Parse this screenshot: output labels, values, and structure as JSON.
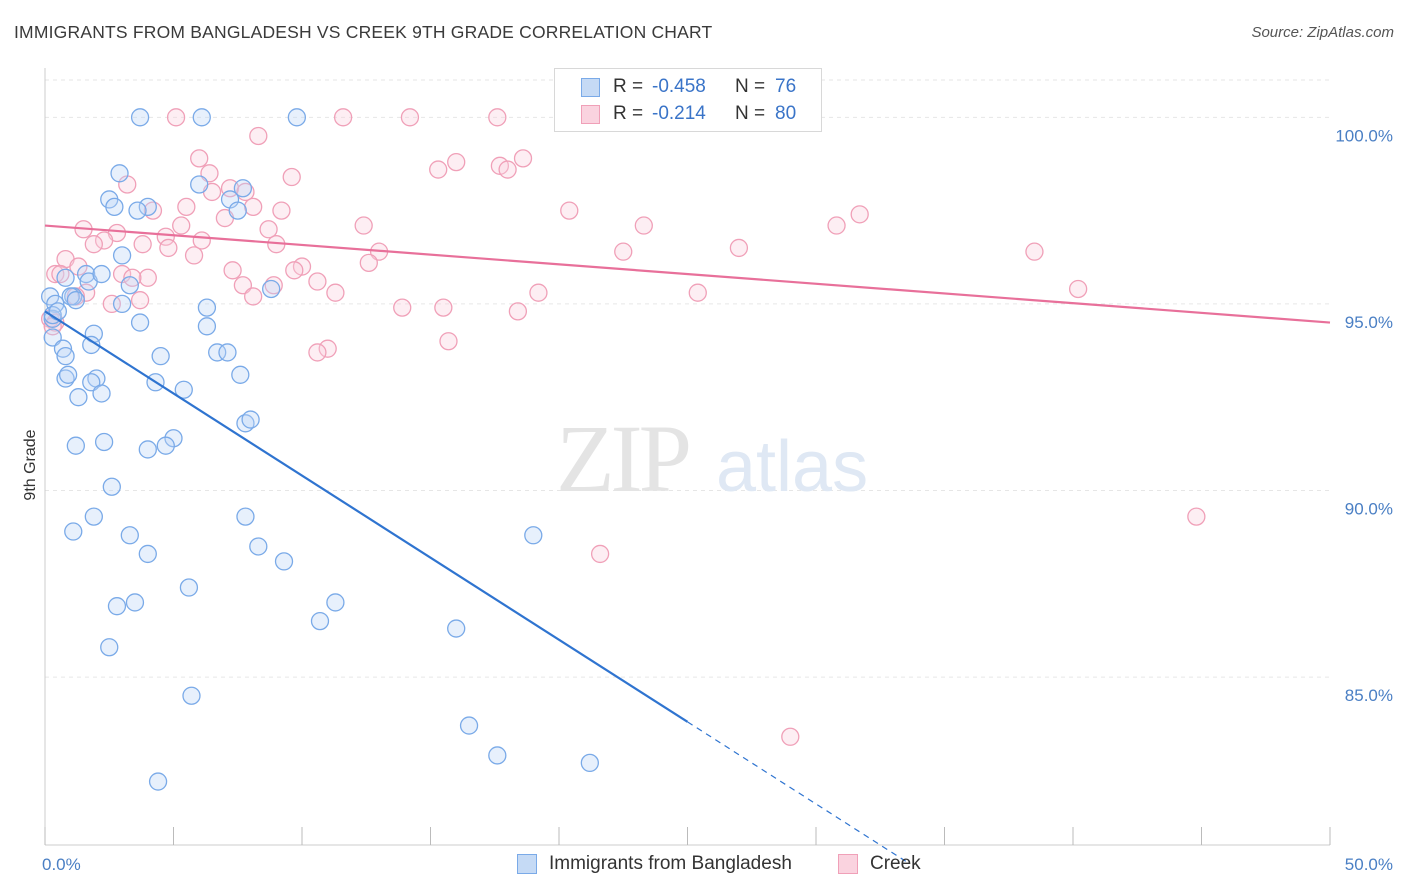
{
  "title": "IMMIGRANTS FROM BANGLADESH VS CREEK 9TH GRADE CORRELATION CHART",
  "source": "Source: ZipAtlas.com",
  "watermark": {
    "zip": "ZIP",
    "atlas": "atlas"
  },
  "legend": {
    "rows": [
      {
        "r_label": "R =",
        "r_value": "-0.458",
        "n_label": "N =",
        "n_value": "76",
        "color": "#7aaae8",
        "fill": "#b9d3f5"
      },
      {
        "r_label": "R =",
        "r_value": "-0.214",
        "n_label": "N =",
        "n_value": "80",
        "color": "#f0a0b8",
        "fill": "#f9cfdc"
      }
    ]
  },
  "bottom_legend": [
    "Immigrants from Bangladesh",
    "Creek"
  ],
  "chart_data": {
    "type": "scatter",
    "ylabel": "9th Grade",
    "xlim": [
      0,
      50
    ],
    "ylim": [
      80.5,
      101
    ],
    "x_tick_labels": [
      "0.0%",
      "50.0%"
    ],
    "y_ticks": [
      85,
      90,
      95,
      100
    ],
    "y_tick_labels": [
      "85.0%",
      "90.0%",
      "95.0%",
      "100.0%"
    ],
    "grid": true,
    "series": [
      {
        "name": "Immigrants from Bangladesh",
        "color": "#7aaae8",
        "line_color": "#2f74d0",
        "trend": {
          "x0": 0,
          "y0": 94.8,
          "x1": 25,
          "y1": 83.8,
          "dash_to_x": 33.5
        },
        "points": [
          [
            3.7,
            100
          ],
          [
            6.1,
            100
          ],
          [
            9.8,
            100
          ],
          [
            2.9,
            98.5
          ],
          [
            6.0,
            98.2
          ],
          [
            7.7,
            98.1
          ],
          [
            2.5,
            97.8
          ],
          [
            4.0,
            97.6
          ],
          [
            3.6,
            97.5
          ],
          [
            7.2,
            97.8
          ],
          [
            7.5,
            97.5
          ],
          [
            2.7,
            97.6
          ],
          [
            3.0,
            96.3
          ],
          [
            1.6,
            95.8
          ],
          [
            1.7,
            95.6
          ],
          [
            2.2,
            95.8
          ],
          [
            0.8,
            95.7
          ],
          [
            3.3,
            95.5
          ],
          [
            8.8,
            95.4
          ],
          [
            0.2,
            95.2
          ],
          [
            1.1,
            95.2
          ],
          [
            1.0,
            95.2
          ],
          [
            1.2,
            95.1
          ],
          [
            3.0,
            95.0
          ],
          [
            0.4,
            95.0
          ],
          [
            6.3,
            94.9
          ],
          [
            0.3,
            94.6
          ],
          [
            3.7,
            94.5
          ],
          [
            6.3,
            94.4
          ],
          [
            1.9,
            94.2
          ],
          [
            0.3,
            94.1
          ],
          [
            1.8,
            93.9
          ],
          [
            0.7,
            93.8
          ],
          [
            6.7,
            93.7
          ],
          [
            7.1,
            93.7
          ],
          [
            4.5,
            93.6
          ],
          [
            0.8,
            93.6
          ],
          [
            0.8,
            93.0
          ],
          [
            0.9,
            93.1
          ],
          [
            2.0,
            93.0
          ],
          [
            7.6,
            93.1
          ],
          [
            4.3,
            92.9
          ],
          [
            1.8,
            92.9
          ],
          [
            5.4,
            92.7
          ],
          [
            2.2,
            92.6
          ],
          [
            1.3,
            92.5
          ],
          [
            7.8,
            91.8
          ],
          [
            8.0,
            91.9
          ],
          [
            5.0,
            91.4
          ],
          [
            2.3,
            91.3
          ],
          [
            1.2,
            91.2
          ],
          [
            4.7,
            91.2
          ],
          [
            4.0,
            91.1
          ],
          [
            2.6,
            90.1
          ],
          [
            1.9,
            89.3
          ],
          [
            7.8,
            89.3
          ],
          [
            1.1,
            88.9
          ],
          [
            3.3,
            88.8
          ],
          [
            19.0,
            88.8
          ],
          [
            8.3,
            88.5
          ],
          [
            4.0,
            88.3
          ],
          [
            9.3,
            88.1
          ],
          [
            5.6,
            87.4
          ],
          [
            11.3,
            87.0
          ],
          [
            3.5,
            87.0
          ],
          [
            2.8,
            86.9
          ],
          [
            10.7,
            86.5
          ],
          [
            16.0,
            86.3
          ],
          [
            2.5,
            85.8
          ],
          [
            5.7,
            84.5
          ],
          [
            16.5,
            83.7
          ],
          [
            17.6,
            82.9
          ],
          [
            21.2,
            82.7
          ],
          [
            4.4,
            82.2
          ],
          [
            0.3,
            94.7
          ],
          [
            0.5,
            94.8
          ]
        ]
      },
      {
        "name": "Creek",
        "color": "#f0a0b8",
        "line_color": "#e8709a",
        "trend": {
          "x0": 0,
          "y0": 97.1,
          "x1": 50,
          "y1": 94.5
        },
        "points": [
          [
            5.1,
            100
          ],
          [
            11.6,
            100
          ],
          [
            14.2,
            100
          ],
          [
            17.6,
            100
          ],
          [
            22.7,
            100
          ],
          [
            23.3,
            100
          ],
          [
            8.3,
            99.5
          ],
          [
            6.0,
            98.9
          ],
          [
            16.0,
            98.8
          ],
          [
            17.7,
            98.7
          ],
          [
            15.3,
            98.6
          ],
          [
            18.6,
            98.9
          ],
          [
            18.0,
            98.6
          ],
          [
            6.4,
            98.5
          ],
          [
            9.6,
            98.4
          ],
          [
            3.2,
            98.2
          ],
          [
            6.5,
            98.0
          ],
          [
            7.2,
            98.1
          ],
          [
            7.8,
            98.0
          ],
          [
            4.2,
            97.5
          ],
          [
            5.5,
            97.6
          ],
          [
            8.1,
            97.6
          ],
          [
            9.2,
            97.5
          ],
          [
            7.0,
            97.3
          ],
          [
            20.4,
            97.5
          ],
          [
            31.7,
            97.4
          ],
          [
            12.4,
            97.1
          ],
          [
            23.3,
            97.1
          ],
          [
            30.8,
            97.1
          ],
          [
            5.3,
            97.1
          ],
          [
            1.5,
            97.0
          ],
          [
            2.8,
            96.9
          ],
          [
            8.7,
            97.0
          ],
          [
            4.7,
            96.8
          ],
          [
            2.3,
            96.7
          ],
          [
            6.1,
            96.7
          ],
          [
            1.9,
            96.6
          ],
          [
            3.8,
            96.6
          ],
          [
            4.8,
            96.5
          ],
          [
            9.0,
            96.6
          ],
          [
            13.0,
            96.4
          ],
          [
            22.5,
            96.4
          ],
          [
            27.0,
            96.5
          ],
          [
            38.5,
            96.4
          ],
          [
            0.8,
            96.2
          ],
          [
            5.8,
            96.3
          ],
          [
            12.6,
            96.1
          ],
          [
            1.3,
            96.0
          ],
          [
            10.0,
            96.0
          ],
          [
            9.7,
            95.9
          ],
          [
            7.3,
            95.9
          ],
          [
            0.4,
            95.8
          ],
          [
            0.6,
            95.8
          ],
          [
            3.0,
            95.8
          ],
          [
            4.0,
            95.7
          ],
          [
            3.4,
            95.7
          ],
          [
            10.6,
            95.6
          ],
          [
            7.7,
            95.5
          ],
          [
            8.9,
            95.5
          ],
          [
            40.2,
            95.4
          ],
          [
            1.6,
            95.3
          ],
          [
            11.3,
            95.3
          ],
          [
            19.2,
            95.3
          ],
          [
            8.1,
            95.2
          ],
          [
            1.2,
            95.2
          ],
          [
            25.4,
            95.3
          ],
          [
            3.7,
            95.1
          ],
          [
            2.6,
            95.0
          ],
          [
            13.9,
            94.9
          ],
          [
            15.5,
            94.9
          ],
          [
            18.4,
            94.8
          ],
          [
            0.2,
            94.6
          ],
          [
            0.4,
            94.5
          ],
          [
            15.7,
            94.0
          ],
          [
            11.0,
            93.8
          ],
          [
            10.6,
            93.7
          ],
          [
            44.8,
            89.3
          ],
          [
            21.6,
            88.3
          ],
          [
            29.0,
            83.4
          ],
          [
            0.3,
            94.4
          ]
        ]
      }
    ]
  }
}
